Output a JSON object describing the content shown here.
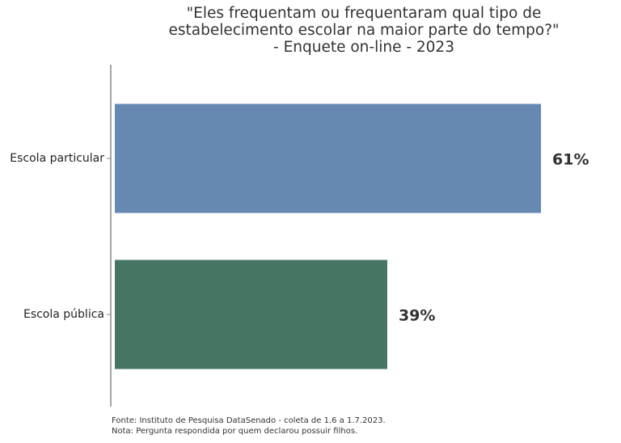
{
  "chart_data": {
    "type": "bar",
    "orientation": "horizontal",
    "title": "\"Eles frequentam ou frequentaram qual tipo de\nestabelecimento escolar na maior parte do tempo?\"\n- Enquete on-line - 2023",
    "categories": [
      "Escola particular",
      "Escola pública"
    ],
    "values": [
      61,
      39
    ],
    "value_labels": [
      "61%",
      "39%"
    ],
    "colors": [
      "#6688b1",
      "#477564"
    ],
    "source": "Fonte: Instituto de Pesquisa DataSenado - coleta de 1.6 a 1.7.2023.",
    "note": "Nota: Pergunta respondida por quem declarou possuir filhos."
  }
}
